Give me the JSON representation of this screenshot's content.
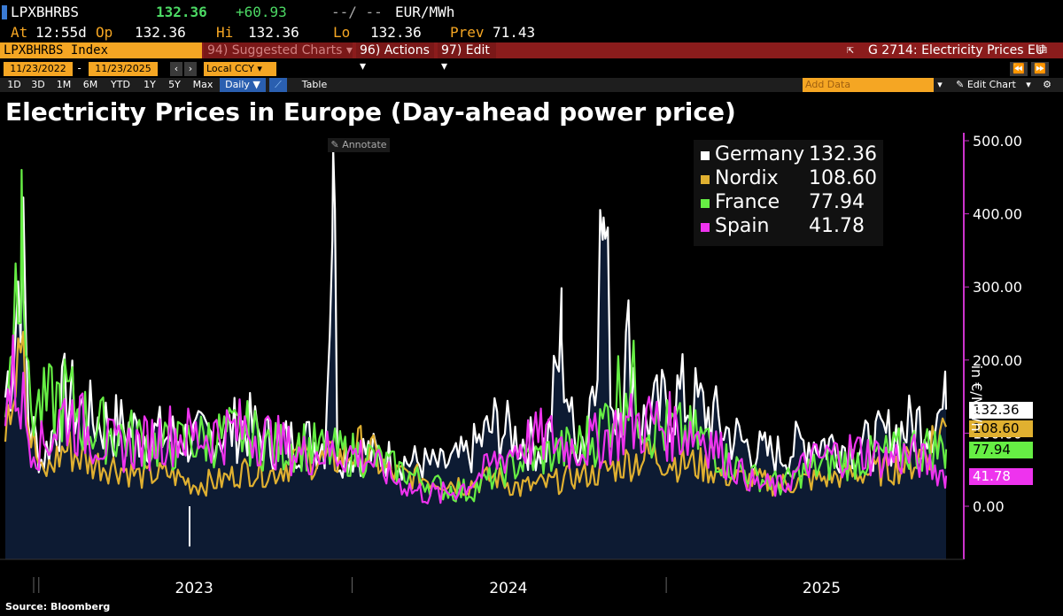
{
  "header": {
    "ticker": "LPXBHRBS",
    "last": "132.36",
    "change": "+60.93",
    "blank": "--/ --",
    "unit": "EUR/MWh",
    "at_label": "At",
    "at_time": "12:55d",
    "op_label": "Op",
    "op": "132.36",
    "hi_label": "Hi",
    "hi": "132.36",
    "lo_label": "Lo",
    "lo": "132.36",
    "prev_label": "Prev",
    "prev": "71.43"
  },
  "toolbar": {
    "index_name": "LPXBHRBS Index",
    "suggested": "94) Suggested Charts ▾",
    "actions": "96) Actions ▾",
    "edit": "97) Edit ▾",
    "chart_id": "G 2714: Electricity Prices EU",
    "date_from": "11/23/2022",
    "date_to": "11/23/2025",
    "currency": "Local CCY",
    "periods": [
      "1D",
      "3D",
      "1M",
      "6M",
      "YTD",
      "1Y",
      "5Y",
      "Max"
    ],
    "frequency": "Daily ▼",
    "table": "Table",
    "add_data": "Add Data",
    "edit_chart": "Edit Chart",
    "annotate": "Annotate"
  },
  "chart_data": {
    "type": "line",
    "title": "Electricity Prices in Europe (Day-ahead power price)",
    "ylabel": "in €/MWh",
    "ylim": [
      -60,
      510
    ],
    "yticks": [
      "500.00",
      "400.00",
      "300.00",
      "200.00",
      "100.00",
      "0.00"
    ],
    "x_labels": [
      "2023",
      "2024",
      "2025"
    ],
    "x_label_dates": [
      "2023-07-01",
      "2024-07-01",
      "2025-07-01"
    ],
    "x_range": [
      "2022-11-23",
      "2025-11-23"
    ],
    "legend_position": "top-right",
    "source": "Source: Bloomberg",
    "series": [
      {
        "name": "Germany",
        "last": "132.36",
        "color": "#ffffff",
        "points": [
          [
            "2022-11-23",
            150
          ],
          [
            "2022-12-05",
            250
          ],
          [
            "2022-12-12",
            380
          ],
          [
            "2022-12-20",
            120
          ],
          [
            "2023-01-05",
            60
          ],
          [
            "2023-02-01",
            150
          ],
          [
            "2023-03-01",
            120
          ],
          [
            "2023-04-01",
            110
          ],
          [
            "2023-05-01",
            100
          ],
          [
            "2023-06-01",
            95
          ],
          [
            "2023-07-01",
            90
          ],
          [
            "2023-08-01",
            100
          ],
          [
            "2023-09-01",
            110
          ],
          [
            "2023-10-01",
            85
          ],
          [
            "2023-11-01",
            90
          ],
          [
            "2023-12-01",
            85
          ],
          [
            "2023-12-10",
            490
          ],
          [
            "2023-12-15",
            70
          ],
          [
            "2024-01-15",
            75
          ],
          [
            "2024-02-15",
            65
          ],
          [
            "2024-03-15",
            60
          ],
          [
            "2024-04-15",
            55
          ],
          [
            "2024-05-15",
            70
          ],
          [
            "2024-06-15",
            110
          ],
          [
            "2024-07-15",
            90
          ],
          [
            "2024-08-15",
            80
          ],
          [
            "2024-09-01",
            230
          ],
          [
            "2024-09-15",
            90
          ],
          [
            "2024-10-01",
            100
          ],
          [
            "2024-10-20",
            395
          ],
          [
            "2024-11-01",
            120
          ],
          [
            "2024-11-20",
            225
          ],
          [
            "2024-12-01",
            110
          ],
          [
            "2025-01-15",
            150
          ],
          [
            "2025-02-15",
            130
          ],
          [
            "2025-03-15",
            100
          ],
          [
            "2025-04-15",
            75
          ],
          [
            "2025-05-15",
            70
          ],
          [
            "2025-06-15",
            90
          ],
          [
            "2025-07-15",
            85
          ],
          [
            "2025-08-15",
            80
          ],
          [
            "2025-09-15",
            95
          ],
          [
            "2025-10-15",
            110
          ],
          [
            "2025-11-23",
            132.36
          ]
        ]
      },
      {
        "name": "Nordix",
        "last": "108.60",
        "color": "#e0b030",
        "points": [
          [
            "2022-11-23",
            140
          ],
          [
            "2022-12-05",
            220
          ],
          [
            "2022-12-12",
            340
          ],
          [
            "2022-12-20",
            110
          ],
          [
            "2023-01-05",
            40
          ],
          [
            "2023-02-01",
            80
          ],
          [
            "2023-03-01",
            60
          ],
          [
            "2023-04-01",
            55
          ],
          [
            "2023-05-01",
            40
          ],
          [
            "2023-06-01",
            45
          ],
          [
            "2023-07-01",
            30
          ],
          [
            "2023-08-01",
            35
          ],
          [
            "2023-09-01",
            50
          ],
          [
            "2023-10-01",
            45
          ],
          [
            "2023-11-01",
            70
          ],
          [
            "2023-12-01",
            60
          ],
          [
            "2024-01-15",
            80
          ],
          [
            "2024-02-15",
            45
          ],
          [
            "2024-03-15",
            40
          ],
          [
            "2024-04-15",
            35
          ],
          [
            "2024-05-15",
            30
          ],
          [
            "2024-06-15",
            40
          ],
          [
            "2024-07-15",
            25
          ],
          [
            "2024-08-15",
            30
          ],
          [
            "2024-09-15",
            40
          ],
          [
            "2024-10-15",
            45
          ],
          [
            "2024-11-15",
            60
          ],
          [
            "2024-12-15",
            70
          ],
          [
            "2025-01-15",
            60
          ],
          [
            "2025-02-15",
            55
          ],
          [
            "2025-03-15",
            40
          ],
          [
            "2025-04-15",
            35
          ],
          [
            "2025-05-15",
            30
          ],
          [
            "2025-06-15",
            35
          ],
          [
            "2025-07-15",
            40
          ],
          [
            "2025-08-15",
            45
          ],
          [
            "2025-09-15",
            50
          ],
          [
            "2025-10-15",
            60
          ],
          [
            "2025-11-23",
            108.6
          ]
        ]
      },
      {
        "name": "France",
        "last": "77.94",
        "color": "#66ee44",
        "points": [
          [
            "2022-11-23",
            160
          ],
          [
            "2022-12-05",
            300
          ],
          [
            "2022-12-12",
            460
          ],
          [
            "2022-12-20",
            140
          ],
          [
            "2023-01-05",
            130
          ],
          [
            "2023-02-01",
            150
          ],
          [
            "2023-03-01",
            110
          ],
          [
            "2023-04-01",
            100
          ],
          [
            "2023-05-01",
            90
          ],
          [
            "2023-06-01",
            80
          ],
          [
            "2023-07-01",
            90
          ],
          [
            "2023-08-01",
            95
          ],
          [
            "2023-09-01",
            100
          ],
          [
            "2023-10-01",
            80
          ],
          [
            "2023-11-01",
            85
          ],
          [
            "2023-12-01",
            75
          ],
          [
            "2024-01-15",
            70
          ],
          [
            "2024-02-15",
            55
          ],
          [
            "2024-03-15",
            40
          ],
          [
            "2024-04-15",
            25
          ],
          [
            "2024-05-15",
            20
          ],
          [
            "2024-06-15",
            40
          ],
          [
            "2024-07-15",
            60
          ],
          [
            "2024-08-15",
            70
          ],
          [
            "2024-09-15",
            80
          ],
          [
            "2024-10-15",
            100
          ],
          [
            "2024-11-15",
            180
          ],
          [
            "2024-12-15",
            110
          ],
          [
            "2025-01-15",
            100
          ],
          [
            "2025-02-15",
            90
          ],
          [
            "2025-03-15",
            60
          ],
          [
            "2025-04-15",
            40
          ],
          [
            "2025-05-15",
            30
          ],
          [
            "2025-06-15",
            50
          ],
          [
            "2025-07-15",
            60
          ],
          [
            "2025-08-15",
            65
          ],
          [
            "2025-09-15",
            70
          ],
          [
            "2025-10-15",
            80
          ],
          [
            "2025-11-23",
            77.94
          ]
        ]
      },
      {
        "name": "Spain",
        "last": "41.78",
        "color": "#ee33ee",
        "points": [
          [
            "2022-11-23",
            140
          ],
          [
            "2022-12-05",
            180
          ],
          [
            "2022-12-12",
            150
          ],
          [
            "2022-12-20",
            100
          ],
          [
            "2023-01-05",
            80
          ],
          [
            "2023-02-01",
            130
          ],
          [
            "2023-03-01",
            100
          ],
          [
            "2023-04-01",
            80
          ],
          [
            "2023-05-01",
            85
          ],
          [
            "2023-06-01",
            100
          ],
          [
            "2023-07-01",
            95
          ],
          [
            "2023-08-01",
            100
          ],
          [
            "2023-09-01",
            105
          ],
          [
            "2023-10-01",
            90
          ],
          [
            "2023-11-01",
            70
          ],
          [
            "2023-12-01",
            75
          ],
          [
            "2024-01-15",
            70
          ],
          [
            "2024-02-15",
            40
          ],
          [
            "2024-03-15",
            20
          ],
          [
            "2024-04-15",
            15
          ],
          [
            "2024-05-15",
            30
          ],
          [
            "2024-06-15",
            60
          ],
          [
            "2024-07-15",
            85
          ],
          [
            "2024-08-15",
            95
          ],
          [
            "2024-09-15",
            80
          ],
          [
            "2024-10-15",
            90
          ],
          [
            "2024-11-15",
            110
          ],
          [
            "2024-12-15",
            115
          ],
          [
            "2025-01-15",
            105
          ],
          [
            "2025-02-15",
            100
          ],
          [
            "2025-03-15",
            60
          ],
          [
            "2025-04-15",
            30
          ],
          [
            "2025-05-15",
            25
          ],
          [
            "2025-06-15",
            60
          ],
          [
            "2025-07-15",
            70
          ],
          [
            "2025-08-15",
            75
          ],
          [
            "2025-09-15",
            65
          ],
          [
            "2025-10-15",
            70
          ],
          [
            "2025-11-23",
            41.78
          ]
        ]
      }
    ]
  }
}
